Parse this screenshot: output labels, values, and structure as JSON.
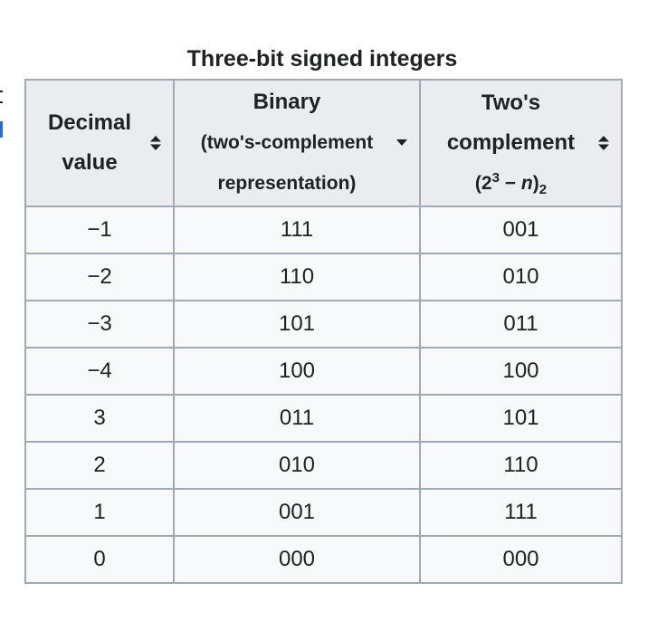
{
  "caption": "Three-bit signed integers",
  "headers": {
    "col1": {
      "line1": "Decimal",
      "line2": "value"
    },
    "col2": {
      "line1": "Binary",
      "line2": "(two's-complement",
      "line3": "representation)"
    },
    "col3": {
      "line1": "Two's",
      "line2": "complement",
      "formula_prefix": "(2",
      "formula_exp": "3",
      "formula_mid": " − ",
      "formula_var": "n",
      "formula_close": ")",
      "formula_sub": "2"
    }
  },
  "sort_state": {
    "col1": "unsorted",
    "col2": "descending",
    "col3": "unsorted"
  },
  "rows": [
    {
      "decimal": "−1",
      "binary": "111",
      "twos": "001"
    },
    {
      "decimal": "−2",
      "binary": "110",
      "twos": "010"
    },
    {
      "decimal": "−3",
      "binary": "101",
      "twos": "011"
    },
    {
      "decimal": "−4",
      "binary": "100",
      "twos": "100"
    },
    {
      "decimal": "3",
      "binary": "011",
      "twos": "101"
    },
    {
      "decimal": "2",
      "binary": "010",
      "twos": "110"
    },
    {
      "decimal": "1",
      "binary": "001",
      "twos": "111"
    },
    {
      "decimal": "0",
      "binary": "000",
      "twos": "000"
    }
  ],
  "colors": {
    "border": "#a2a9b1",
    "header_bg": "#eaecf0",
    "cell_bg": "#f8f9fa",
    "text": "#202122",
    "link": "#3366cc"
  }
}
